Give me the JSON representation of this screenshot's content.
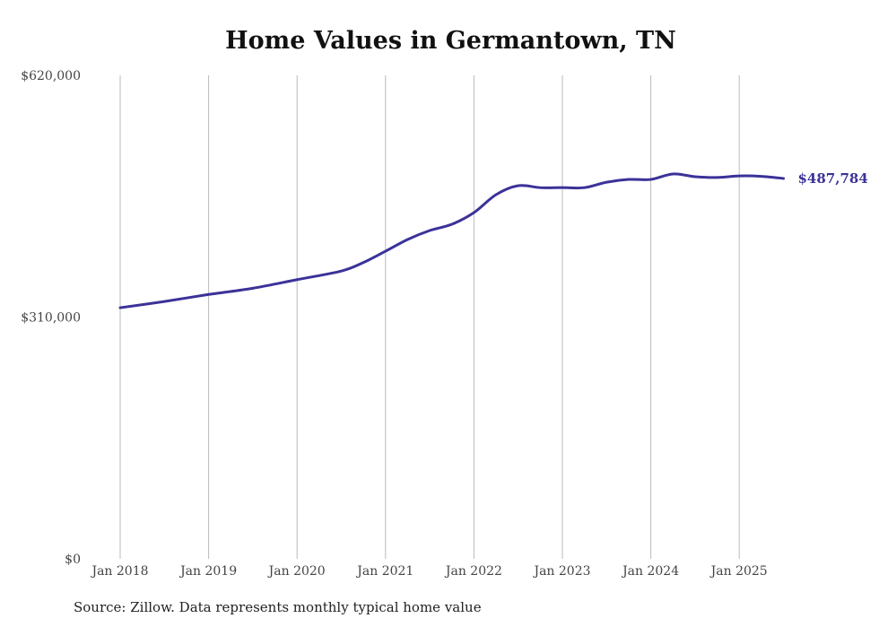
{
  "chart_data": {
    "type": "line",
    "title": "Home Values in Germantown, TN",
    "source": "Source: Zillow. Data represents monthly typical home value",
    "xlabel": "",
    "ylabel": "",
    "ylim": [
      0,
      620000
    ],
    "y_ticks": [
      {
        "value": 0,
        "label": "$0"
      },
      {
        "value": 310000,
        "label": "$310,000"
      },
      {
        "value": 620000,
        "label": "$620,000"
      }
    ],
    "x_ticks": [
      {
        "value": 2018,
        "label": "Jan 2018"
      },
      {
        "value": 2019,
        "label": "Jan 2019"
      },
      {
        "value": 2020,
        "label": "Jan 2020"
      },
      {
        "value": 2021,
        "label": "Jan 2021"
      },
      {
        "value": 2022,
        "label": "Jan 2022"
      },
      {
        "value": 2023,
        "label": "Jan 2023"
      },
      {
        "value": 2024,
        "label": "Jan 2024"
      },
      {
        "value": 2025,
        "label": "Jan 2025"
      }
    ],
    "xlim": [
      2018,
      2025.5
    ],
    "grid": "vertical",
    "line_color": "#3b3299",
    "end_label": "$487,784",
    "series": [
      {
        "name": "Typical home value",
        "x": [
          2018,
          2018.5,
          2019,
          2019.5,
          2020,
          2020.5,
          2020.75,
          2021,
          2021.25,
          2021.5,
          2021.75,
          2022,
          2022.25,
          2022.5,
          2022.75,
          2023,
          2023.25,
          2023.5,
          2023.75,
          2024,
          2024.25,
          2024.5,
          2024.75,
          2025,
          2025.25,
          2025.5
        ],
        "values": [
          322000,
          330000,
          339000,
          347000,
          358000,
          369000,
          380000,
          394500,
          409500,
          421000,
          429000,
          444000,
          467000,
          478500,
          476000,
          476000,
          476000,
          483000,
          486500,
          486500,
          493500,
          490000,
          489000,
          491000,
          490500,
          487784
        ]
      }
    ]
  }
}
